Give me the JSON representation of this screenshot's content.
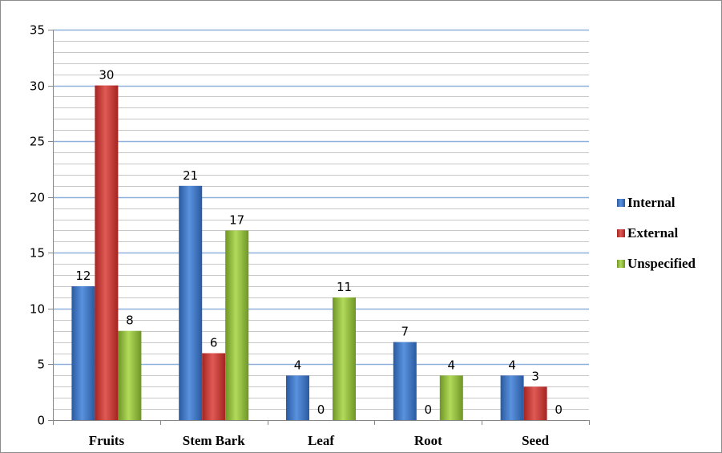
{
  "chart_data": {
    "type": "bar",
    "categories": [
      "Fruits",
      "Stem Bark",
      "Leaf",
      "Root",
      "Seed"
    ],
    "series": [
      {
        "name": "Internal",
        "values": [
          12,
          21,
          4,
          7,
          4
        ],
        "color": "#3d78c8"
      },
      {
        "name": "External",
        "values": [
          30,
          6,
          0,
          0,
          3
        ],
        "color": "#d23b36"
      },
      {
        "name": "Unspecified",
        "values": [
          8,
          17,
          11,
          4,
          0
        ],
        "color": "#94c13a"
      }
    ],
    "ylim": [
      0,
      35
    ],
    "yticks": [
      0,
      5,
      10,
      15,
      20,
      25,
      30,
      35
    ],
    "major_grid": true,
    "minor_grid": true,
    "legend_position": "right",
    "data_labels": true
  }
}
